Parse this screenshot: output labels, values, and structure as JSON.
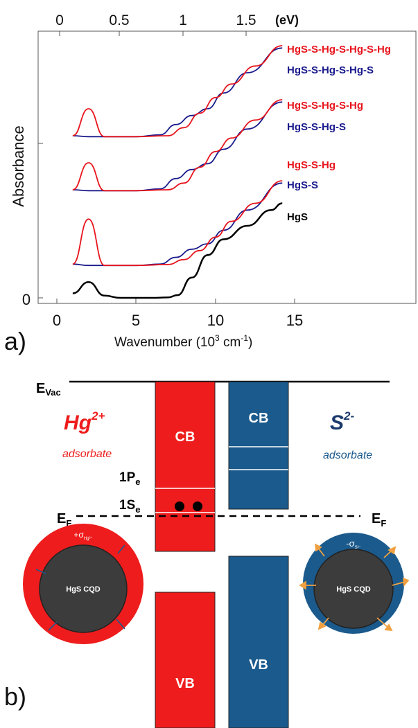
{
  "panel_a": {
    "panel_label": "a)",
    "top_axis": {
      "ticks": [
        "0",
        "0.5",
        "1",
        "1.5"
      ],
      "unit": "(eV)"
    },
    "x_axis": {
      "label": "Wavenumber (10",
      "label_sup": "3",
      "label_mid": " cm",
      "label_sup2": "-1",
      "label_end": ")",
      "ticks": [
        "0",
        "5",
        "10",
        "15"
      ]
    },
    "y_axis": {
      "label": "Absorbance",
      "ticks": [
        "0"
      ]
    },
    "legend": [
      {
        "text": "HgS-S-Hg-S-Hg-S-Hg",
        "color": "#e8141c"
      },
      {
        "text": "HgS-S-Hg-S-Hg-S",
        "color": "#1a1a8c"
      },
      {
        "text": "HgS-S-Hg-S-Hg",
        "color": "#e8141c"
      },
      {
        "text": "HgS-S-Hg-S",
        "color": "#1a1a8c"
      },
      {
        "text": "HgS-S-Hg",
        "color": "#e8141c"
      },
      {
        "text": "HgS-S",
        "color": "#1a1a8c"
      },
      {
        "text": "HgS",
        "color": "#000000"
      }
    ]
  },
  "chart_data": {
    "type": "line",
    "xlabel": "Wavenumber (10^3 cm^-1)",
    "ylabel": "Absorbance",
    "top_xlabel": "(eV)",
    "xlim": [
      0,
      19.5
    ],
    "top_ticks_eV": [
      0,
      0.5,
      1,
      1.5
    ],
    "note": "stacked absorbance spectra (vertically offset), y in arbitrary units",
    "series": [
      {
        "name": "HgS",
        "color": "#000000",
        "x": [
          1.0,
          2.0,
          3.0,
          4.0,
          6.0,
          7.0,
          7.6,
          8.5,
          9.5,
          10.5,
          12.0,
          13.5,
          14.2
        ],
        "y": [
          0.1,
          0.35,
          0.05,
          0.0,
          0.0,
          0.01,
          0.06,
          0.45,
          0.95,
          1.3,
          1.6,
          1.95,
          2.1
        ]
      },
      {
        "name": "HgS-S",
        "color": "#1a1a8c",
        "x": [
          1.0,
          2.0,
          3.0,
          5.0,
          6.5,
          7.5,
          8.5,
          9.5,
          10.5,
          12.0,
          14.2
        ],
        "y": [
          0.75,
          0.72,
          0.72,
          0.72,
          0.75,
          0.9,
          1.08,
          1.2,
          1.5,
          1.95,
          2.55
        ]
      },
      {
        "name": "HgS-S-Hg",
        "color": "#e8141c",
        "x": [
          1.0,
          2.0,
          3.0,
          5.0,
          7.0,
          8.0,
          9.0,
          10.0,
          11.0,
          12.5,
          14.2
        ],
        "y": [
          0.75,
          1.75,
          0.72,
          0.72,
          0.74,
          0.85,
          1.05,
          1.35,
          1.7,
          2.1,
          2.6
        ]
      },
      {
        "name": "HgS-S-Hg-S",
        "color": "#1a1a8c",
        "x": [
          1.0,
          2.0,
          3.0,
          5.0,
          6.5,
          7.5,
          8.5,
          9.5,
          10.5,
          12.0,
          14.2
        ],
        "y": [
          2.4,
          2.38,
          2.38,
          2.38,
          2.42,
          2.65,
          2.85,
          2.98,
          3.3,
          3.75,
          4.35
        ]
      },
      {
        "name": "HgS-S-Hg-S-Hg",
        "color": "#e8141c",
        "x": [
          1.0,
          2.0,
          3.0,
          5.0,
          7.0,
          8.0,
          9.0,
          10.0,
          11.0,
          12.5,
          14.2
        ],
        "y": [
          2.4,
          3.0,
          2.38,
          2.38,
          2.4,
          2.55,
          2.9,
          3.25,
          3.55,
          3.95,
          4.4
        ]
      },
      {
        "name": "HgS-S-Hg-S-Hg-S",
        "color": "#1a1a8c",
        "x": [
          1.0,
          2.0,
          3.0,
          5.0,
          6.5,
          7.5,
          8.5,
          9.5,
          10.5,
          12.0,
          14.2
        ],
        "y": [
          3.6,
          3.58,
          3.58,
          3.58,
          3.62,
          3.85,
          4.05,
          4.2,
          4.55,
          5.0,
          5.55
        ]
      },
      {
        "name": "HgS-S-Hg-S-Hg-S-Hg",
        "color": "#e8141c",
        "x": [
          1.0,
          2.0,
          3.0,
          5.0,
          7.0,
          8.0,
          9.0,
          10.0,
          11.0,
          12.5,
          14.2
        ],
        "y": [
          3.6,
          4.2,
          3.58,
          3.58,
          3.6,
          3.78,
          4.1,
          4.45,
          4.75,
          5.15,
          5.6
        ]
      }
    ]
  },
  "panel_b": {
    "panel_label": "b)",
    "evac": "E",
    "evac_sub": "Vac",
    "ef": "E",
    "ef_sub": "F",
    "cb": "CB",
    "vb": "VB",
    "level_1p": "1P",
    "level_1p_sub": "e",
    "level_1s": "1S",
    "level_1s_sub": "e",
    "hg_ion": "Hg",
    "hg_charge": "2+",
    "s_ion": "S",
    "s_charge": "2-",
    "adsorbate": "adsorbate",
    "core_label": "HgS CQD",
    "sigma_hg": "+σ",
    "sigma_hg_sub": "Hg²⁺",
    "sigma_s": "-σ",
    "sigma_s_sub": "S²⁻",
    "colors": {
      "red": "#ee1c1c",
      "blue": "#1b5a8c",
      "core": "#3c3c3c",
      "orange": "#f0a040"
    }
  }
}
